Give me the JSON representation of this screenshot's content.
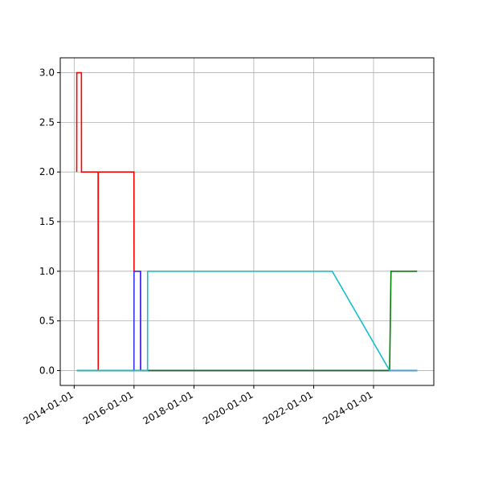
{
  "chart_data": {
    "type": "line",
    "grid": true,
    "xlim": [
      "2013-07-15",
      "2026-01-05"
    ],
    "xticks": [
      "2014-01-01",
      "2016-01-01",
      "2018-01-01",
      "2020-01-01",
      "2022-01-01",
      "2024-01-01"
    ],
    "ylim": [
      -0.15,
      3.15
    ],
    "yticks": [
      {
        "value": 0,
        "label": "0.0"
      },
      {
        "value": 0.5,
        "label": "0.5"
      },
      {
        "value": 1,
        "label": "1.0"
      },
      {
        "value": 1.5,
        "label": "1.5"
      },
      {
        "value": 2,
        "label": "2.0"
      },
      {
        "value": 2.5,
        "label": "2.5"
      },
      {
        "value": 3,
        "label": "3.0"
      }
    ],
    "series": [
      {
        "color": "#ff0000",
        "x": [
          "2014-02-01",
          "2014-02-02",
          "2014-03-30",
          "2014-03-31",
          "2014-10-20",
          "2014-10-21",
          "2014-10-22",
          "2015-12-31",
          "2016-01-01",
          "2016-03-20",
          "2016-03-21",
          "2025-06-15"
        ],
        "values": [
          2,
          3,
          3,
          2,
          2,
          0,
          2,
          2,
          1,
          1,
          0,
          0
        ]
      },
      {
        "color": "#3333ff",
        "x": [
          "2014-02-01",
          "2015-12-31",
          "2016-01-01",
          "2016-03-20",
          "2016-03-21",
          "2025-06-15"
        ],
        "values": [
          0,
          0,
          1,
          1,
          0,
          0
        ]
      },
      {
        "color": "#008000",
        "x": [
          "2014-02-01",
          "2024-07-15",
          "2024-08-01",
          "2025-06-15"
        ],
        "values": [
          0,
          0,
          1,
          1
        ]
      },
      {
        "color": "#17becf",
        "x": [
          "2014-02-01",
          "2016-06-14",
          "2016-06-15",
          "2022-08-15",
          "2024-07-15",
          "2025-06-15"
        ],
        "values": [
          0,
          0,
          1,
          1,
          0,
          0
        ]
      }
    ]
  }
}
